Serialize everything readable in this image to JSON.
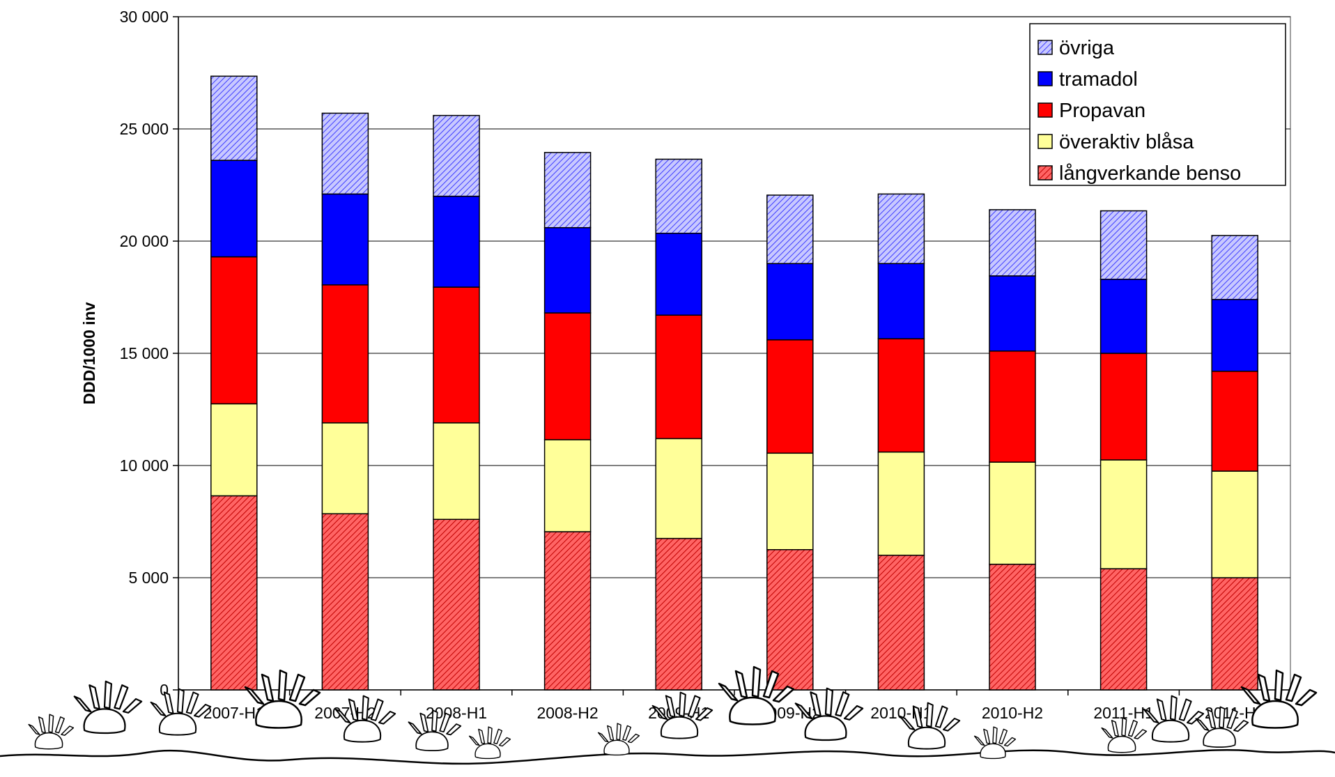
{
  "chart_data": {
    "type": "bar",
    "stacked": true,
    "categories": [
      "2007-H1",
      "2007-H2",
      "2008-H1",
      "2008-H2",
      "2009-H1",
      "2009-H2",
      "2010-H1",
      "2010-H2",
      "2011-H1",
      "2011-H2"
    ],
    "series": [
      {
        "name": "långverkande benso",
        "color": "#ff6464",
        "pattern": "diagonal-stripes",
        "values": [
          8650,
          7850,
          7600,
          7050,
          6750,
          6250,
          6000,
          5600,
          5400,
          5000
        ]
      },
      {
        "name": "överaktiv blåsa",
        "color": "#ffff99",
        "pattern": "solid",
        "values": [
          4100,
          4050,
          4300,
          4100,
          4450,
          4300,
          4600,
          4550,
          4850,
          4750
        ]
      },
      {
        "name": "Propavan",
        "color": "#ff0000",
        "pattern": "solid",
        "values": [
          6550,
          6150,
          6050,
          5650,
          5500,
          5050,
          5050,
          4950,
          4750,
          4450
        ]
      },
      {
        "name": "tramadol",
        "color": "#0000ff",
        "pattern": "solid",
        "values": [
          4300,
          4050,
          4050,
          3800,
          3650,
          3400,
          3350,
          3350,
          3300,
          3200
        ]
      },
      {
        "name": "övriga",
        "color": "#9999ff",
        "pattern": "diagonal-stripes",
        "values": [
          3750,
          3600,
          3600,
          3350,
          3300,
          3050,
          3100,
          2950,
          3050,
          2850
        ]
      }
    ],
    "ylabel": "DDD/1000 inv",
    "xlabel": "",
    "title": "",
    "ylim": [
      0,
      30000
    ],
    "yticks": [
      0,
      5000,
      10000,
      15000,
      20000,
      25000,
      30000
    ],
    "ytick_labels": [
      "0",
      "5 000",
      "10 000",
      "15 000",
      "20 000",
      "25 000",
      "30 000"
    ],
    "grid": true,
    "legend_position": "top-right",
    "legend_order": [
      "övriga",
      "tramadol",
      "Propavan",
      "överaktiv blåsa",
      "långverkande benso"
    ]
  }
}
